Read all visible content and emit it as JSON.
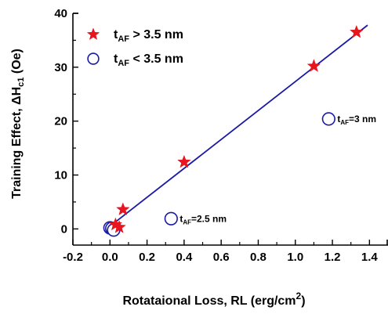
{
  "chart_data": {
    "type": "scatter",
    "xlabel": {
      "main": "Rotataional Loss, RL (erg/cm",
      "sup": "2",
      "tail": ")"
    },
    "ylabel": {
      "main": "Training Effect, ΔH",
      "sub": "c1",
      "tail": " (Oe)"
    },
    "xlim": [
      -0.2,
      1.5
    ],
    "ylim": [
      -3,
      40
    ],
    "xticks": [
      -0.2,
      0.0,
      0.2,
      0.4,
      0.6,
      0.8,
      1.0,
      1.2,
      1.4
    ],
    "xtick_labels": [
      "-0.2",
      "0.0",
      "0.2",
      "0.4",
      "0.6",
      "0.8",
      "1.0",
      "1.2",
      "1.4"
    ],
    "yticks": [
      0,
      10,
      20,
      30,
      40
    ],
    "ytick_labels": [
      "0",
      "10",
      "20",
      "30",
      "40"
    ],
    "grid": false,
    "legend_position": "top-left",
    "series": [
      {
        "name": {
          "prefix": "t",
          "sub": "AF",
          "suffix": " > 3.5 nm"
        },
        "marker": "star",
        "color": "#e8141e",
        "points": [
          {
            "x": 0.03,
            "y": 0.8
          },
          {
            "x": 0.05,
            "y": 0.3
          },
          {
            "x": 0.07,
            "y": 3.6
          },
          {
            "x": 0.4,
            "y": 12.4
          },
          {
            "x": 1.1,
            "y": 30.2
          },
          {
            "x": 1.33,
            "y": 36.5
          }
        ]
      },
      {
        "name": {
          "prefix": "t",
          "sub": "AF",
          "suffix": " < 3.5 nm"
        },
        "marker": "open-circle",
        "color": "#1a1aa6",
        "points": [
          {
            "x": 0.0,
            "y": 0.2
          },
          {
            "x": 0.01,
            "y": 0.1
          },
          {
            "x": 0.02,
            "y": -0.2
          },
          {
            "x": 0.33,
            "y": 1.9
          },
          {
            "x": 1.18,
            "y": 20.4
          }
        ]
      }
    ],
    "fit_line": {
      "color": "#1a1aa6",
      "x": [
        0.0,
        1.39
      ],
      "y": [
        0.5,
        37.8
      ]
    },
    "annotations": [
      {
        "prefix": "t",
        "sub": "AF",
        "suffix": "=2.5 nm",
        "x": 0.33,
        "y": 1.9
      },
      {
        "prefix": "t",
        "sub": "AF",
        "suffix": "=3 nm",
        "x": 1.18,
        "y": 20.4
      }
    ]
  }
}
